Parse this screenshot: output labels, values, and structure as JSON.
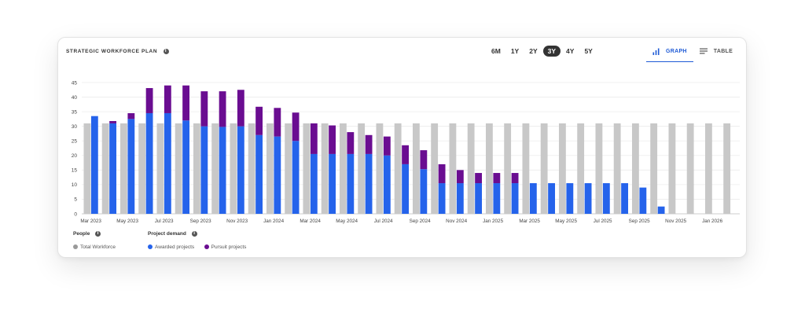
{
  "header": {
    "title": "STRATEGIC WORKFORCE PLAN",
    "info_icon": "i"
  },
  "ranges": [
    {
      "label": "6M",
      "active": false
    },
    {
      "label": "1Y",
      "active": false
    },
    {
      "label": "2Y",
      "active": false
    },
    {
      "label": "3Y",
      "active": true
    },
    {
      "label": "4Y",
      "active": false
    },
    {
      "label": "5Y",
      "active": false
    }
  ],
  "view_toggle": {
    "graph_label": "GRAPH",
    "graph_icon": "bar-chart-icon",
    "table_label": "TABLE",
    "table_icon": "lines-icon",
    "active": "graph"
  },
  "legend": {
    "people_title": "People",
    "people_items": [
      "Total Workforce"
    ],
    "demand_title": "Project demand",
    "demand_items": [
      "Awarded projects",
      "Pursuit projects"
    ]
  },
  "colors": {
    "workforce": "#c8c8c8",
    "awarded": "#2563eb",
    "pursuit": "#6a0d91",
    "accent": "#1f5bd6"
  },
  "chart_data": {
    "type": "bar",
    "ylim": [
      0,
      45
    ],
    "yticks": [
      0,
      5,
      10,
      15,
      20,
      25,
      30,
      35,
      40,
      45
    ],
    "grid": true,
    "categories": [
      "Mar 2023",
      "Apr 2023",
      "May 2023",
      "Jun 2023",
      "Jul 2023",
      "Aug 2023",
      "Sep 2023",
      "Oct 2023",
      "Nov 2023",
      "Dec 2023",
      "Jan 2024",
      "Feb 2024",
      "Mar 2024",
      "Apr 2024",
      "May 2024",
      "Jun 2024",
      "Jul 2024",
      "Aug 2024",
      "Sep 2024",
      "Oct 2024",
      "Nov 2024",
      "Dec 2024",
      "Jan 2025",
      "Feb 2025",
      "Mar 2025",
      "Apr 2025",
      "May 2025",
      "Jun 2025",
      "Jul 2025",
      "Aug 2025",
      "Sep 2025",
      "Oct 2025",
      "Nov 2025",
      "Dec 2025",
      "Jan 2026",
      "Feb 2026"
    ],
    "xtick_labels": [
      "Mar 2023",
      "May 2023",
      "Jul 2023",
      "Sep 2023",
      "Nov 2023",
      "Jan 2024",
      "Mar 2024",
      "May 2024",
      "Jul 2024",
      "Sep 2024",
      "Nov 2024",
      "Jan 2025",
      "Mar 2025",
      "May 2025",
      "Jul 2025",
      "Sep 2025",
      "Nov 2025",
      "Jan 2026"
    ],
    "series": [
      {
        "name": "Total Workforce",
        "values": [
          31,
          31,
          31,
          31,
          31,
          31,
          31,
          31,
          31,
          31,
          31,
          31,
          31,
          31,
          31,
          31,
          31,
          31,
          31,
          31,
          31,
          31,
          31,
          31,
          31,
          31,
          31,
          31,
          31,
          31,
          31,
          31,
          31,
          31,
          31,
          31
        ]
      },
      {
        "name": "Awarded projects",
        "values": [
          33.5,
          31,
          32.5,
          34.5,
          34.5,
          32,
          30,
          29.8,
          30,
          27,
          26.5,
          25,
          20.5,
          20.5,
          20.5,
          20.5,
          20,
          17,
          15.3,
          10.5,
          10.5,
          10.5,
          10.5,
          10.5,
          10.5,
          10.5,
          10.5,
          10.5,
          10.5,
          10.5,
          9,
          2.5,
          0,
          0,
          0,
          0
        ]
      },
      {
        "name": "Pursuit projects",
        "values": [
          0,
          0.8,
          2,
          8.6,
          9.5,
          12,
          12,
          12.2,
          12.5,
          9.7,
          9.8,
          9.7,
          10.5,
          9.8,
          7.5,
          6.5,
          6.5,
          6.5,
          6.5,
          6.5,
          4.5,
          3.5,
          3.5,
          3.5,
          0,
          0,
          0,
          0,
          0,
          0,
          0,
          0,
          0,
          0,
          0,
          0
        ]
      }
    ]
  }
}
